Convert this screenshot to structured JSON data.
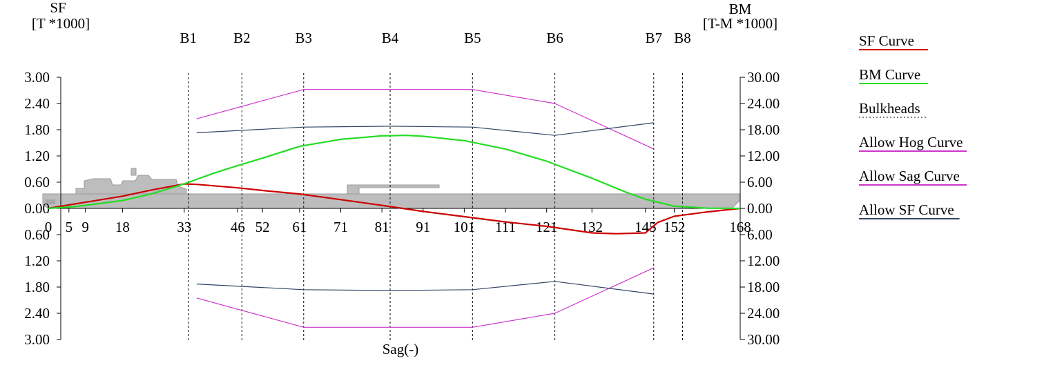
{
  "chart_data": {
    "type": "line",
    "left_axis": {
      "title_line1": "SF",
      "title_line2": "[T *1000]",
      "ylim": [
        -3.0,
        3.0
      ],
      "ticks": [
        3.0,
        2.4,
        1.8,
        1.2,
        0.6,
        0.0,
        -0.6,
        -1.2,
        -1.8,
        -2.4,
        -3.0
      ],
      "tick_labels": [
        "3.00",
        "2.40",
        "1.80",
        "1.20",
        "0.60",
        "0.00",
        "0.60",
        "1.20",
        "1.80",
        "2.40",
        "3.00"
      ]
    },
    "right_axis": {
      "title_line1": "BM",
      "title_line2": "[T-M *1000]",
      "ylim": [
        -30,
        30
      ],
      "ticks": [
        30,
        24,
        18,
        12,
        6,
        0,
        -6,
        -12,
        -18,
        -24,
        -30
      ],
      "tick_labels": [
        "30.00",
        "24.00",
        "18.00",
        "12.00",
        "6.00",
        "0.00",
        "6.00",
        "12.00",
        "18.00",
        "24.00",
        "30.00"
      ]
    },
    "x_axis": {
      "xlim": [
        0,
        168
      ],
      "ticks": [
        0,
        5,
        9,
        18,
        33,
        46,
        52,
        61,
        71,
        81,
        91,
        101,
        111,
        121,
        132,
        145,
        152,
        168
      ],
      "tick_labels": [
        "0",
        "5",
        "9",
        "18",
        "33",
        "46",
        "52",
        "61",
        "71",
        "81",
        "91",
        "101",
        "111",
        "121",
        "132",
        "145",
        "152",
        "168"
      ]
    },
    "xlabel": "Sag(-)",
    "bulkheads": [
      {
        "name": "B1",
        "x": 34
      },
      {
        "name": "B2",
        "x": 47
      },
      {
        "name": "B3",
        "x": 62
      },
      {
        "name": "B4",
        "x": 83
      },
      {
        "name": "B5",
        "x": 103
      },
      {
        "name": "B6",
        "x": 123
      },
      {
        "name": "B7",
        "x": 147
      },
      {
        "name": "B8",
        "x": 154
      }
    ],
    "series": [
      {
        "name": "SF Curve",
        "axis": "left",
        "color": "#cc0000",
        "x": [
          0,
          5,
          9,
          18,
          25,
          33,
          36,
          46,
          52,
          61,
          71,
          81,
          91,
          101,
          111,
          121,
          132,
          138,
          145,
          148,
          152,
          160,
          168
        ],
        "y": [
          0.0,
          0.08,
          0.14,
          0.28,
          0.42,
          0.56,
          0.55,
          0.47,
          0.41,
          0.33,
          0.2,
          0.07,
          -0.07,
          -0.19,
          -0.31,
          -0.41,
          -0.56,
          -0.58,
          -0.56,
          -0.32,
          -0.18,
          -0.08,
          0.0
        ]
      },
      {
        "name": "BM Curve",
        "axis": "right",
        "color": "#22dd22",
        "x": [
          0,
          5,
          9,
          18,
          25,
          33,
          40,
          46,
          52,
          61,
          71,
          81,
          87,
          91,
          101,
          111,
          121,
          132,
          140,
          145,
          152,
          160,
          168
        ],
        "y": [
          0.0,
          0.3,
          0.7,
          1.8,
          3.3,
          5.6,
          8.0,
          9.8,
          11.5,
          14.2,
          15.8,
          16.6,
          16.7,
          16.5,
          15.5,
          13.6,
          10.8,
          6.9,
          3.8,
          2.1,
          0.5,
          0.05,
          0.0
        ]
      },
      {
        "name": "Allow Hog Curve",
        "axis": "right",
        "color": "#cc33cc",
        "x": [
          36,
          62,
          103,
          123,
          147
        ],
        "y": [
          20.5,
          27.2,
          27.2,
          24.0,
          13.6
        ]
      },
      {
        "name": "Allow Sag Curve",
        "axis": "right",
        "color": "#cc33cc",
        "x": [
          36,
          62,
          103,
          123,
          147
        ],
        "y": [
          -20.5,
          -27.2,
          -27.2,
          -24.0,
          -13.6
        ]
      },
      {
        "name": "Allow SF Curve",
        "axis": "left",
        "color": "#334466",
        "x": [
          36,
          62,
          83,
          103,
          123,
          147
        ],
        "y": [
          1.73,
          1.86,
          1.88,
          1.86,
          1.67,
          1.96
        ]
      },
      {
        "name": "Allow SF Curve lower",
        "axis": "left",
        "color": "#334466",
        "x": [
          36,
          62,
          83,
          103,
          123,
          147
        ],
        "y": [
          -1.73,
          -1.86,
          -1.88,
          -1.86,
          -1.67,
          -1.96
        ]
      }
    ],
    "legend": {
      "placement": "right",
      "items": [
        {
          "label": "SF Curve",
          "color": "#cc0000",
          "style": "solid"
        },
        {
          "label": "BM Curve",
          "color": "#22dd22",
          "style": "solid"
        },
        {
          "label": "Bulkheads",
          "color": "#000000",
          "style": "dotted"
        },
        {
          "label": "Allow Hog Curve",
          "color": "#cc33cc",
          "style": "solid"
        },
        {
          "label": "Allow Sag Curve",
          "color": "#cc33cc",
          "style": "solid"
        },
        {
          "label": "Allow SF Curve",
          "color": "#334466",
          "style": "solid"
        }
      ]
    },
    "hull_color": "#bdbdbd",
    "grid": false
  }
}
